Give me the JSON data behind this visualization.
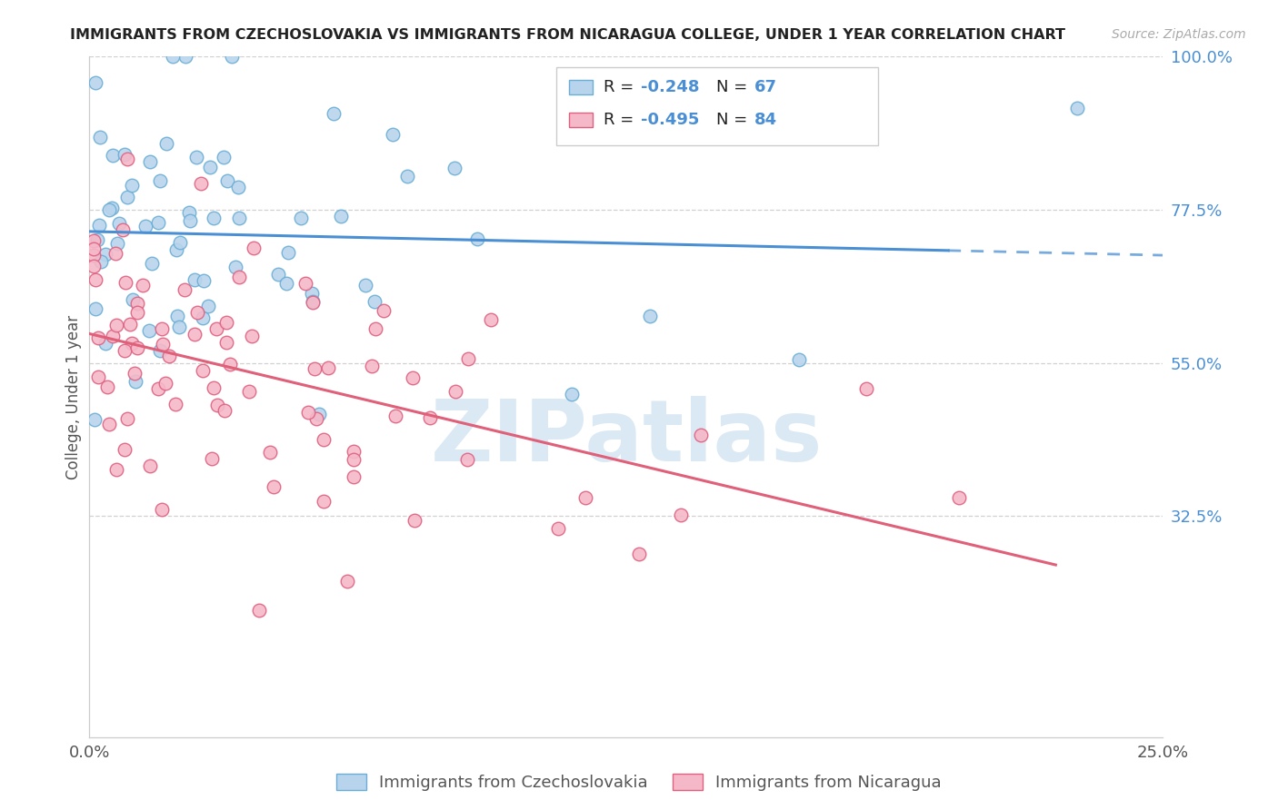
{
  "title": "IMMIGRANTS FROM CZECHOSLOVAKIA VS IMMIGRANTS FROM NICARAGUA COLLEGE, UNDER 1 YEAR CORRELATION CHART",
  "source": "Source: ZipAtlas.com",
  "ylabel": "College, Under 1 year",
  "xlim": [
    0.0,
    0.25
  ],
  "ylim": [
    0.0,
    1.0
  ],
  "ytick_values": [
    0.0,
    0.325,
    0.55,
    0.775,
    1.0
  ],
  "ytick_labels": [
    "",
    "32.5%",
    "55.0%",
    "77.5%",
    "100.0%"
  ],
  "xtick_values": [
    0.0,
    0.25
  ],
  "xtick_labels": [
    "0.0%",
    "25.0%"
  ],
  "legend_r1": "-0.248",
  "legend_n1": "67",
  "legend_r2": "-0.495",
  "legend_n2": "84",
  "color_czech_fill": "#b8d4ec",
  "color_czech_edge": "#6aaed6",
  "color_nic_fill": "#f5b8c8",
  "color_nic_edge": "#e06080",
  "color_line_czech": "#4a8fd4",
  "color_line_nic": "#e0607a",
  "watermark": "ZIPatlas",
  "watermark_color": "#cce0f0",
  "grid_color": "#cccccc",
  "title_color": "#222222",
  "source_color": "#aaaaaa",
  "ylabel_color": "#555555",
  "tick_color": "#4a8fd4",
  "xtick_color": "#555555"
}
